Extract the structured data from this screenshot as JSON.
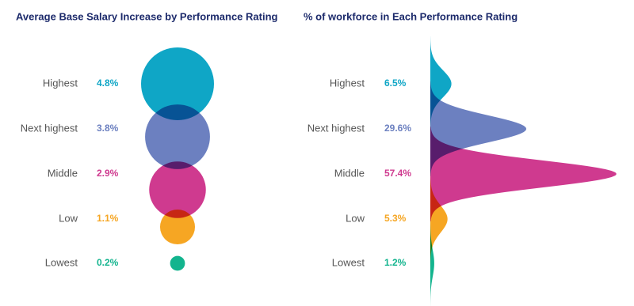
{
  "chart_data": [
    {
      "type": "bubble",
      "title": "Average Base Salary Increase by Performance Rating",
      "categories": [
        "Highest",
        "Next highest",
        "Middle",
        "Low",
        "Lowest"
      ],
      "values": [
        4.8,
        3.8,
        2.9,
        1.1,
        0.2
      ],
      "value_labels": [
        "4.8%",
        "3.8%",
        "2.9%",
        "1.1%",
        "0.2%"
      ],
      "colors": [
        "#0fa6c6",
        "#6c80c0",
        "#cf3a8f",
        "#f6a623",
        "#13b48e"
      ]
    },
    {
      "type": "distribution",
      "title": "% of workforce in Each Performance Rating",
      "categories": [
        "Highest",
        "Next highest",
        "Middle",
        "Low",
        "Lowest"
      ],
      "values": [
        6.5,
        29.6,
        57.4,
        5.3,
        1.2
      ],
      "value_labels": [
        "6.5%",
        "29.6%",
        "57.4%",
        "5.3%",
        "1.2%"
      ],
      "colors": [
        "#0fa6c6",
        "#6c80c0",
        "#cf3a8f",
        "#f6a623",
        "#13b48e"
      ]
    }
  ]
}
